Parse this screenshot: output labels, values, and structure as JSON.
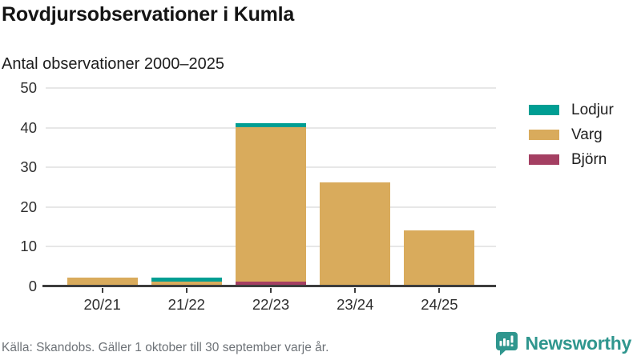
{
  "header": {
    "title": "Rovdjursobservationer i Kumla",
    "subtitle": "Antal observationer 2000–2025"
  },
  "chart_data": {
    "type": "bar",
    "stacked": true,
    "title": "Rovdjursobservationer i Kumla",
    "subtitle": "Antal observationer 2000–2025",
    "categories": [
      "20/21",
      "21/22",
      "22/23",
      "23/24",
      "24/25"
    ],
    "series": [
      {
        "name": "Björn",
        "color": "#a43f62",
        "values": [
          0,
          0,
          1,
          0,
          0
        ]
      },
      {
        "name": "Varg",
        "color": "#d9ab5c",
        "values": [
          2,
          1,
          39,
          26,
          14
        ]
      },
      {
        "name": "Lodjur",
        "color": "#009e93",
        "values": [
          0,
          1,
          1,
          0,
          0
        ]
      }
    ],
    "stack_order": "bottom-to-top",
    "totals": [
      2,
      2,
      41,
      26,
      14
    ],
    "legend": [
      "Lodjur",
      "Varg",
      "Björn"
    ],
    "legend_position": "right",
    "xlabel": "",
    "ylabel": "",
    "ylim": [
      0,
      50
    ],
    "yticks": [
      0,
      10,
      20,
      30,
      40,
      50
    ],
    "grid": true,
    "grid_color": "#e7e7e7",
    "axis_color": "#3d3d3d"
  },
  "footer": {
    "source": "Källa: Skandobs. Gäller 1 oktober till 30 september varje år."
  },
  "branding": {
    "name": "Newsworthy",
    "color": "#2f968e",
    "icon": "bar-chart-speech-bubble-icon"
  }
}
